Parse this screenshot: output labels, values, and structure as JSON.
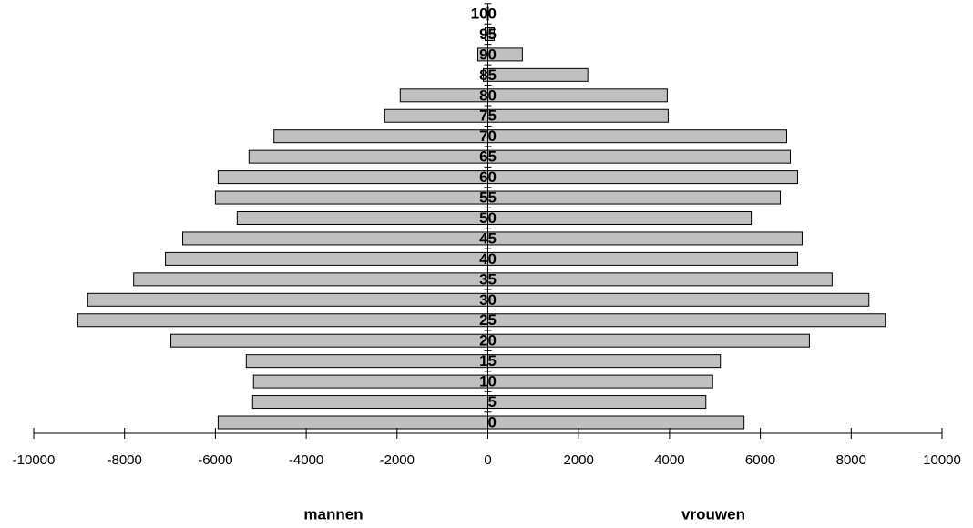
{
  "chart_data": {
    "type": "bar",
    "orientation": "horizontal",
    "categories": [
      "0",
      "5",
      "10",
      "15",
      "20",
      "25",
      "30",
      "35",
      "40",
      "45",
      "50",
      "55",
      "60",
      "65",
      "70",
      "75",
      "80",
      "85",
      "90",
      "95",
      "100"
    ],
    "series": [
      {
        "name": "mannen",
        "color": "#c0c0c0",
        "values": [
          -5940,
          -5180,
          -5160,
          -5320,
          -6980,
          -9030,
          -8810,
          -7800,
          -7100,
          -6720,
          -5520,
          -6000,
          -5940,
          -5260,
          -4710,
          -2270,
          -1930,
          -100,
          -220,
          -60,
          -10
        ]
      },
      {
        "name": "vrouwen",
        "color": "#c0c0c0",
        "values": [
          5640,
          4800,
          4950,
          5120,
          7080,
          8750,
          8390,
          7580,
          6820,
          6920,
          5800,
          6440,
          6820,
          6660,
          6580,
          3970,
          3950,
          2200,
          760,
          140,
          10
        ]
      }
    ],
    "xlim": [
      -10000,
      10000
    ],
    "xticks": [
      -10000,
      -8000,
      -6000,
      -4000,
      -2000,
      0,
      2000,
      4000,
      6000,
      8000,
      10000
    ]
  }
}
